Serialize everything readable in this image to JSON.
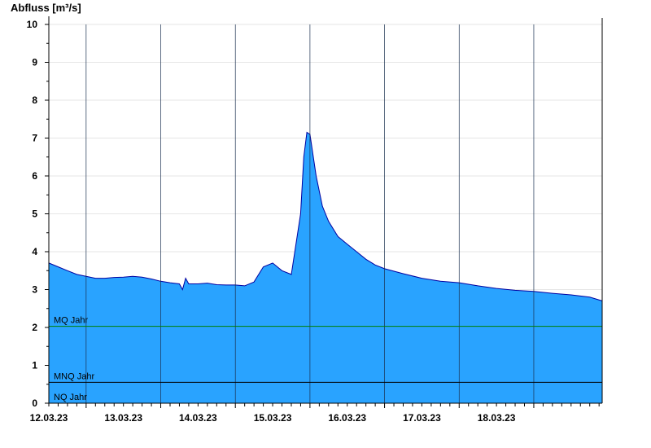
{
  "chart_data": {
    "type": "area",
    "ylabel": "Abfluss [m³/s]",
    "xlabel": "",
    "ylim": [
      0,
      10
    ],
    "y_ticks": [
      0,
      1,
      2,
      3,
      4,
      5,
      6,
      7,
      8,
      9,
      10
    ],
    "xlim": [
      "2023-03-11T12:00",
      "2023-03-18T22:00"
    ],
    "x_tick_labels": [
      "12.03.23",
      "13.03.23",
      "14.03.23",
      "15.03.23",
      "16.03.23",
      "17.03.23",
      "18.03.23"
    ],
    "grid": true,
    "colors": {
      "area_fill": "#29a3ff",
      "area_line": "#0000a0",
      "mq_line": "#008000",
      "mnq_line": "#000000"
    },
    "reference_lines": [
      {
        "label": "MQ Jahr",
        "value": 2.03
      },
      {
        "label": "MNQ Jahr",
        "value": 0.55
      },
      {
        "label": "NQ Jahr",
        "value": 0.0
      }
    ],
    "series": [
      {
        "x": [
          "2023-03-11T12:00",
          "2023-03-11T15:00",
          "2023-03-11T18:00",
          "2023-03-11T21:00",
          "2023-03-12T00:00",
          "2023-03-12T03:00",
          "2023-03-12T06:00",
          "2023-03-12T09:00",
          "2023-03-12T12:00",
          "2023-03-12T15:00",
          "2023-03-12T18:00",
          "2023-03-12T21:00",
          "2023-03-13T00:00",
          "2023-03-13T03:00",
          "2023-03-13T06:00",
          "2023-03-13T07:00",
          "2023-03-13T08:00",
          "2023-03-13T09:00",
          "2023-03-13T12:00",
          "2023-03-13T15:00",
          "2023-03-13T18:00",
          "2023-03-13T21:00",
          "2023-03-14T00:00",
          "2023-03-14T03:00",
          "2023-03-14T06:00",
          "2023-03-14T09:00",
          "2023-03-14T12:00",
          "2023-03-14T15:00",
          "2023-03-14T18:00",
          "2023-03-14T21:00",
          "2023-03-14T22:00",
          "2023-03-14T23:00",
          "2023-03-15T00:00",
          "2023-03-15T02:00",
          "2023-03-15T04:00",
          "2023-03-15T06:00",
          "2023-03-15T09:00",
          "2023-03-15T12:00",
          "2023-03-15T15:00",
          "2023-03-15T18:00",
          "2023-03-15T21:00",
          "2023-03-16T00:00",
          "2023-03-16T06:00",
          "2023-03-16T12:00",
          "2023-03-16T18:00",
          "2023-03-17T00:00",
          "2023-03-17T06:00",
          "2023-03-17T12:00",
          "2023-03-17T18:00",
          "2023-03-18T00:00",
          "2023-03-18T06:00",
          "2023-03-18T12:00",
          "2023-03-18T18:00",
          "2023-03-18T22:00"
        ],
        "y": [
          3.7,
          3.6,
          3.5,
          3.4,
          3.35,
          3.3,
          3.3,
          3.32,
          3.33,
          3.35,
          3.33,
          3.28,
          3.22,
          3.18,
          3.15,
          3.0,
          3.3,
          3.15,
          3.15,
          3.17,
          3.13,
          3.12,
          3.12,
          3.1,
          3.2,
          3.6,
          3.7,
          3.5,
          3.4,
          5.0,
          6.5,
          7.15,
          7.1,
          6.0,
          5.2,
          4.8,
          4.4,
          4.2,
          4.0,
          3.8,
          3.65,
          3.55,
          3.42,
          3.3,
          3.22,
          3.18,
          3.1,
          3.03,
          2.98,
          2.95,
          2.9,
          2.86,
          2.8,
          2.7
        ]
      }
    ]
  }
}
